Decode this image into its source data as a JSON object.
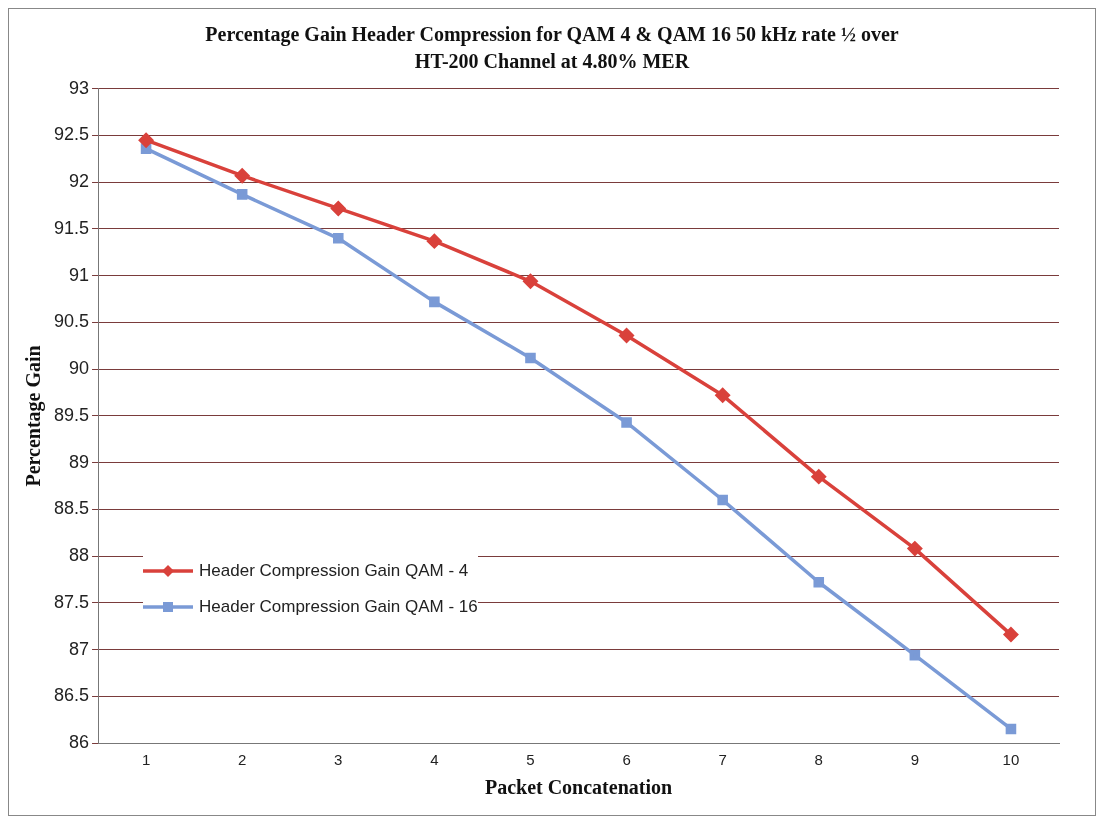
{
  "chart_data": {
    "type": "line",
    "title": "Percentage Gain Header Compression  for QAM 4 & QAM 16 50 kHz rate ½ over HT-200 Channel at 4.80% MER",
    "xlabel": "Packet Concatenation",
    "ylabel": "Percentage Gain",
    "categories": [
      "1",
      "2",
      "3",
      "4",
      "5",
      "6",
      "7",
      "8",
      "9",
      "10"
    ],
    "series": [
      {
        "name": "Header Compression Gain QAM - 4",
        "color": "#d9413b",
        "marker": "diamond",
        "values": [
          92.45,
          92.07,
          91.72,
          91.37,
          90.94,
          90.36,
          89.72,
          88.85,
          88.08,
          87.16
        ]
      },
      {
        "name": "Header Compression Gain QAM - 16",
        "color": "#7a9ad6",
        "marker": "square",
        "values": [
          92.36,
          91.87,
          91.4,
          90.72,
          90.12,
          89.43,
          88.6,
          87.72,
          86.94,
          86.15
        ]
      }
    ],
    "ylim": [
      86,
      93
    ],
    "yticks": [
      86,
      86.5,
      87,
      87.5,
      88,
      88.5,
      89,
      89.5,
      90,
      90.5,
      91,
      91.5,
      92,
      92.5,
      93
    ],
    "grid": "y",
    "legend": "bottom left",
    "line_style": "solid"
  }
}
